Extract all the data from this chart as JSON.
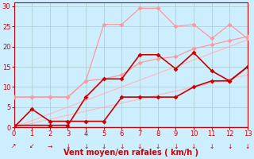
{
  "xlabel": "Vent moyen/en rafales ( km/h )",
  "bg_color": "#cceeff",
  "grid_color": "#aacccc",
  "xlim": [
    0,
    13
  ],
  "ylim": [
    0,
    31
  ],
  "yticks": [
    0,
    5,
    10,
    15,
    20,
    25,
    30
  ],
  "xticks": [
    0,
    1,
    2,
    3,
    4,
    5,
    6,
    7,
    8,
    9,
    10,
    11,
    12,
    13
  ],
  "ref_line1": {
    "x": [
      0,
      13
    ],
    "y": [
      0,
      21.7
    ],
    "color": "#ffbbbb",
    "lw": 0.9
  },
  "ref_line2": {
    "x": [
      0,
      13
    ],
    "y": [
      0,
      13.0
    ],
    "color": "#ffbbbb",
    "lw": 0.9
  },
  "series": [
    {
      "x": [
        0,
        1,
        2,
        3,
        4,
        5,
        6,
        7,
        8,
        9,
        10,
        11,
        12,
        13
      ],
      "y": [
        7.5,
        7.5,
        7.5,
        7.5,
        11.5,
        25.5,
        25.5,
        29.5,
        29.5,
        25.0,
        25.5,
        22.0,
        25.5,
        22.0
      ],
      "color": "#ff9999",
      "lw": 0.9,
      "ms": 3,
      "marker": "D"
    },
    {
      "x": [
        0,
        1,
        2,
        3,
        4,
        5,
        6,
        7,
        8,
        9,
        10,
        11,
        12,
        13
      ],
      "y": [
        7.5,
        7.5,
        7.5,
        7.5,
        11.5,
        12.0,
        13.0,
        16.0,
        17.0,
        17.5,
        19.5,
        20.5,
        21.5,
        22.5
      ],
      "color": "#ff9999",
      "lw": 0.9,
      "ms": 3,
      "marker": "D"
    },
    {
      "x": [
        0,
        2,
        3,
        4,
        5,
        6,
        7,
        8,
        9,
        10,
        11,
        12,
        13
      ],
      "y": [
        0.5,
        0.5,
        0.5,
        7.5,
        12.0,
        12.0,
        18.0,
        18.0,
        14.5,
        18.5,
        14.0,
        11.5,
        15.0
      ],
      "color": "#cc0000",
      "lw": 1.2,
      "ms": 3,
      "marker": "D"
    },
    {
      "x": [
        0,
        1,
        2,
        3,
        4,
        5,
        6,
        7,
        8,
        9,
        10,
        11,
        12,
        13
      ],
      "y": [
        0.0,
        4.5,
        1.5,
        1.5,
        1.5,
        1.5,
        7.5,
        7.5,
        7.5,
        7.5,
        10.0,
        11.5,
        11.5,
        15.0
      ],
      "color": "#cc0000",
      "lw": 1.2,
      "ms": 3,
      "marker": "D"
    }
  ],
  "wind_arrows": [
    "↗",
    "↙",
    "→",
    "↓",
    "↓",
    "↓",
    "↓",
    "↓",
    "↓",
    "↓",
    "↓",
    "↓",
    "↓",
    "↓"
  ],
  "xlabel_color": "#cc0000",
  "tick_color": "#cc0000",
  "axis_color": "#cc0000"
}
